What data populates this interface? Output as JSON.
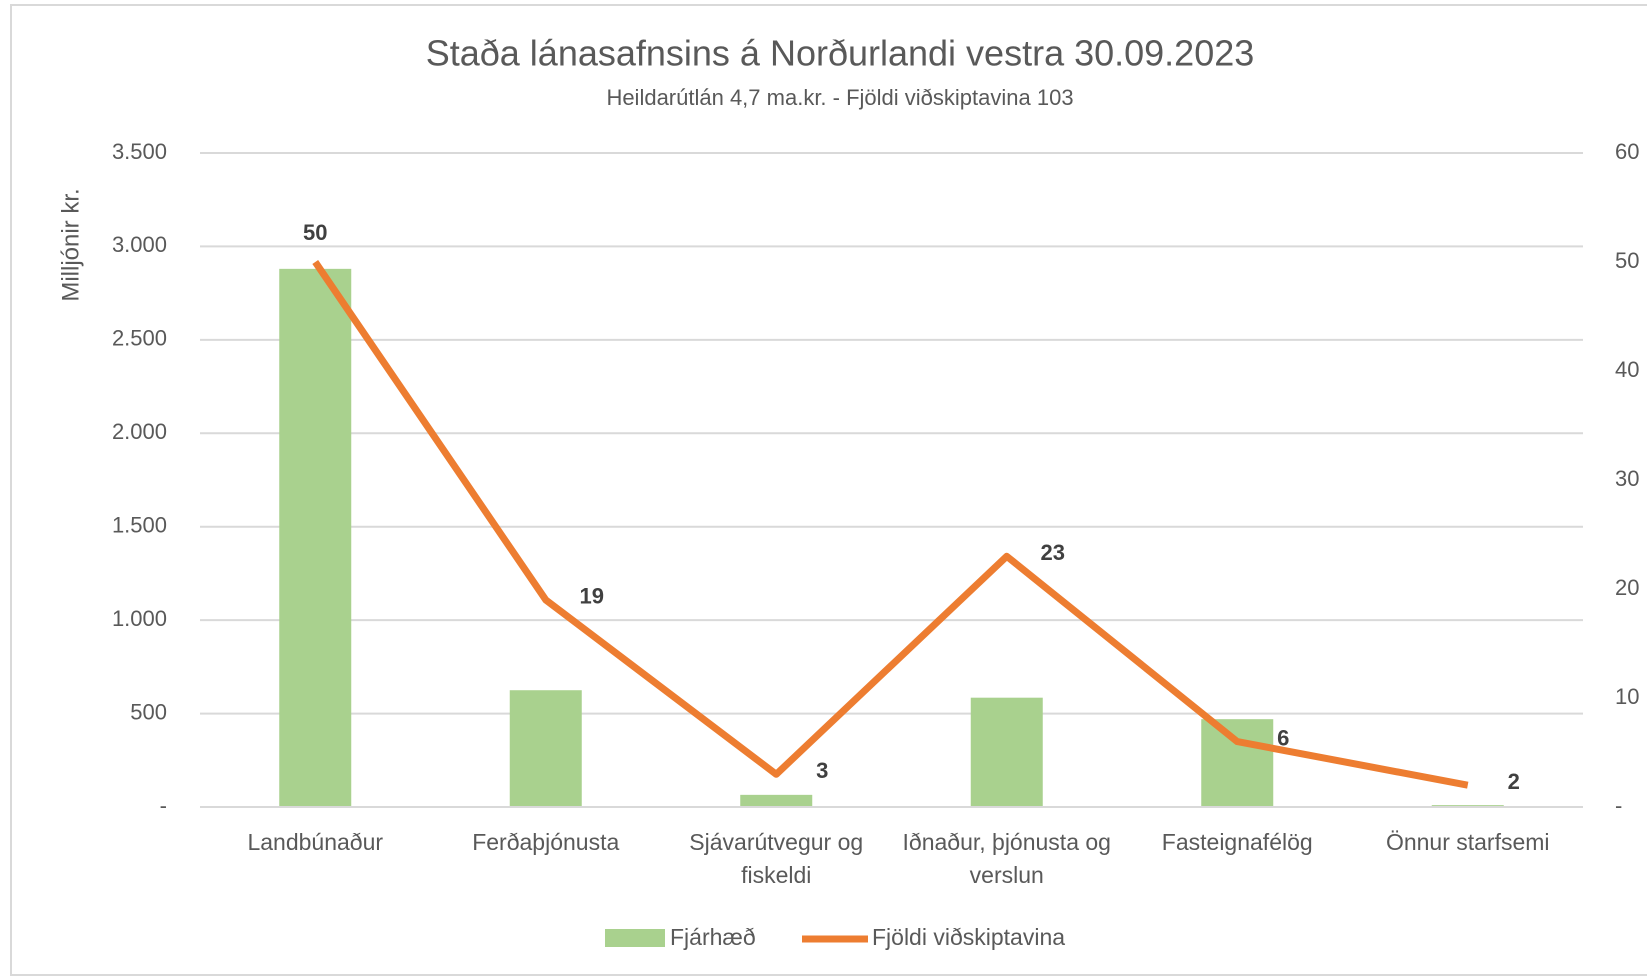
{
  "chart_data": {
    "type": "bar_line",
    "title": "Staða lánasafnsins á Norðurlandi vestra 30.09.2023",
    "subtitle": "Heildarútlán 4,7 ma.kr. - Fjöldi viðskiptavina 103",
    "y_label": "Milljónir kr.",
    "categories": [
      "Landbúnaður",
      "Ferðaþjónusta",
      "Sjávarútvegur og fiskeldi",
      "Iðnaður, þjónusta og verslun",
      "Fasteignafélög",
      "Önnur starfsemi"
    ],
    "series": [
      {
        "name": "Fjárhæð",
        "type": "bar",
        "color": "#a9d18e",
        "values": [
          2880,
          625,
          65,
          585,
          470,
          10
        ]
      },
      {
        "name": "Fjöldi viðskiptavina",
        "type": "line",
        "axis": "y2",
        "color": "#ed7d31",
        "values": [
          50,
          19,
          3,
          23,
          6,
          2
        ]
      }
    ],
    "ylim": [
      0,
      3500
    ],
    "yticks": [
      {
        "value": 0,
        "label": "-"
      },
      500,
      {
        "value": 1000,
        "label": "1.000"
      },
      {
        "value": 1500,
        "label": "1.500"
      },
      {
        "value": 2000,
        "label": "2.000"
      },
      {
        "value": 2500,
        "label": "2.500"
      },
      {
        "value": 3000,
        "label": "3.000"
      },
      {
        "value": 3500,
        "label": "3.500"
      }
    ],
    "y2lim": [
      0,
      60
    ],
    "y2ticks": [
      {
        "value": 0,
        "label": "-"
      },
      10,
      20,
      30,
      40,
      50,
      60
    ],
    "grid": true,
    "legend": "bottom"
  }
}
